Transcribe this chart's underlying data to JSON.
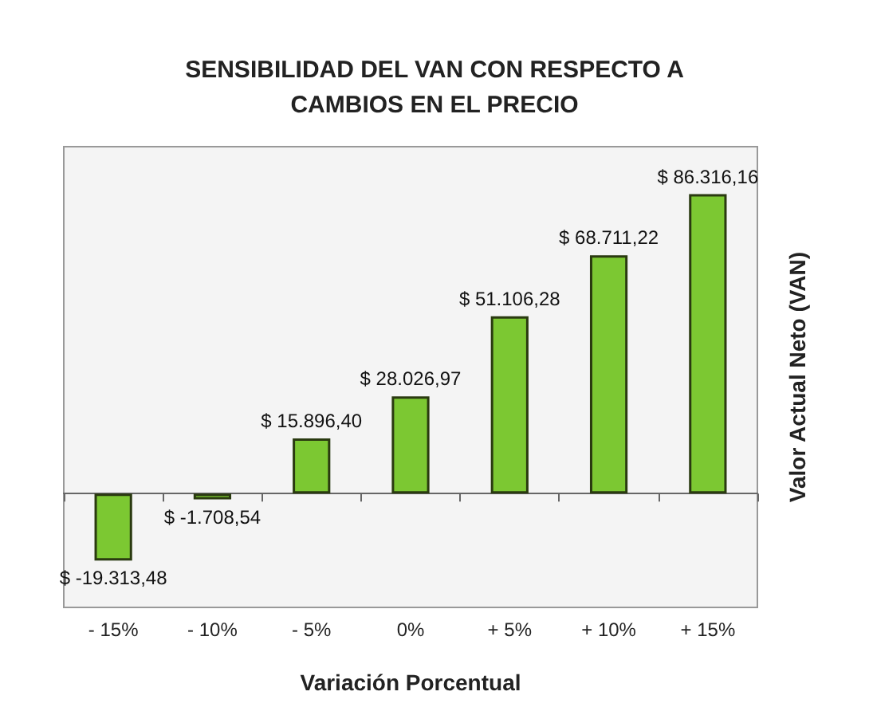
{
  "chart_data": {
    "type": "bar",
    "title": "SENSIBILIDAD DEL VAN CON RESPECTO A\nCAMBIOS EN EL PRECIO",
    "xlabel": "Variación Porcentual",
    "ylabel": "Valor Actual Neto (VAN)",
    "categories": [
      "- 15%",
      "- 10%",
      "- 5%",
      "0%",
      "+ 5%",
      "+ 10%",
      "+ 15%"
    ],
    "values": [
      -19313.48,
      -1708.54,
      15896.4,
      28026.97,
      51106.28,
      68711.22,
      86316.16
    ],
    "value_labels": [
      "$ -19.313,48",
      "$ -1.708,54",
      "$ 15.896,40",
      "$ 28.026,97",
      "$ 51.106,28",
      "$ 68.711,22",
      "$ 86.316,16"
    ],
    "color": "#7cc832",
    "grid": false
  }
}
